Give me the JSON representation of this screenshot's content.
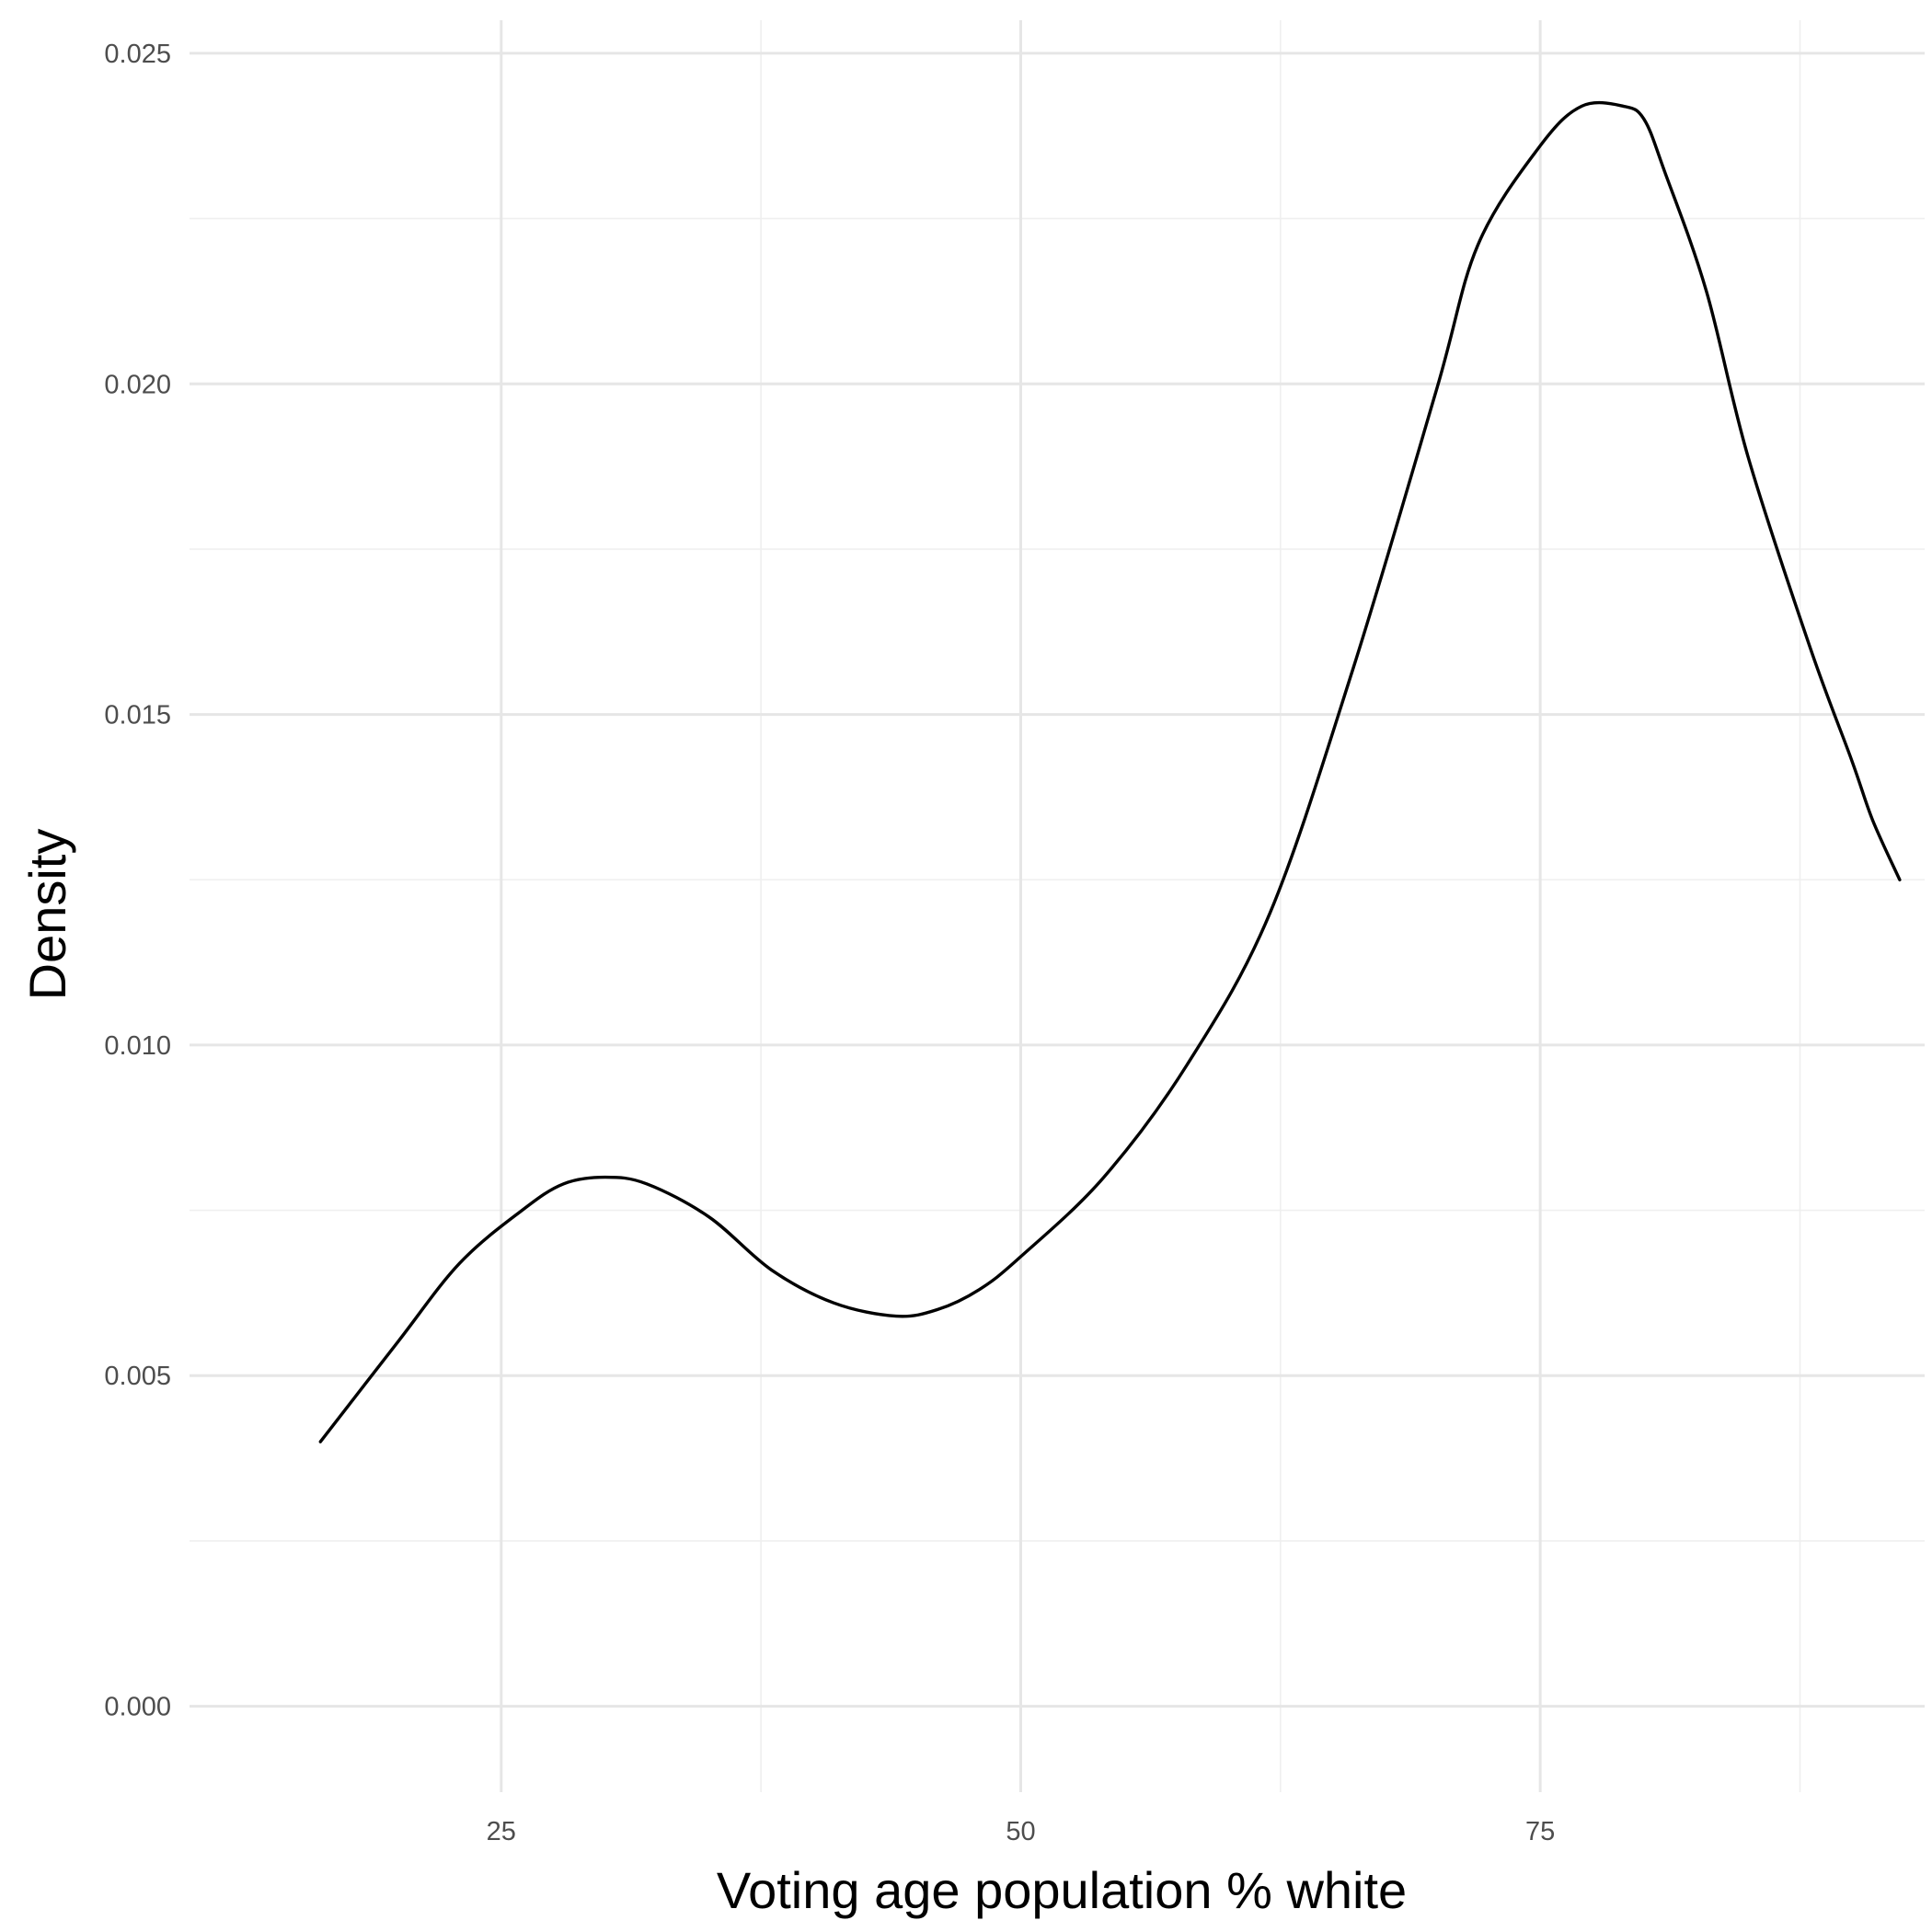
{
  "chart_data": {
    "type": "line",
    "xlabel": "Voting age population % white",
    "ylabel": "Density",
    "xlim": [
      10,
      93.5
    ],
    "ylim": [
      -0.0013,
      0.0255
    ],
    "x_ticks": [
      {
        "value": 25,
        "label": "25"
      },
      {
        "value": 50,
        "label": "50"
      },
      {
        "value": 75,
        "label": "75"
      }
    ],
    "x_minor_ticks": [
      37.5,
      62.5,
      87.5
    ],
    "y_ticks": [
      {
        "value": 0.0,
        "label": "0.000"
      },
      {
        "value": 0.005,
        "label": "0.005"
      },
      {
        "value": 0.01,
        "label": "0.010"
      },
      {
        "value": 0.015,
        "label": "0.015"
      },
      {
        "value": 0.02,
        "label": "0.020"
      },
      {
        "value": 0.025,
        "label": "0.025"
      }
    ],
    "y_minor_ticks": [
      0.0025,
      0.0075,
      0.0125,
      0.0175,
      0.0225
    ],
    "grid": true,
    "legend": "none",
    "line_color": "#000000",
    "grid_color": "#e6e6e6",
    "series": [
      {
        "x": [
          16.3,
          20,
          23,
          26,
          28,
          30,
          32,
          35,
          38,
          41,
          44,
          46,
          48,
          50,
          54,
          58,
          62,
          66,
          70,
          72,
          75,
          77,
          79,
          80,
          81,
          83,
          85,
          88,
          90,
          91,
          92.3
        ],
        "y": [
          0.004,
          0.0055,
          0.0067,
          0.0075,
          0.0079,
          0.008,
          0.0079,
          0.0074,
          0.0066,
          0.0061,
          0.0059,
          0.006,
          0.0063,
          0.0068,
          0.008,
          0.0097,
          0.012,
          0.0157,
          0.0199,
          0.0221,
          0.0236,
          0.0242,
          0.0242,
          0.024,
          0.0232,
          0.0214,
          0.0189,
          0.016,
          0.0143,
          0.0134,
          0.0125
        ]
      }
    ]
  }
}
